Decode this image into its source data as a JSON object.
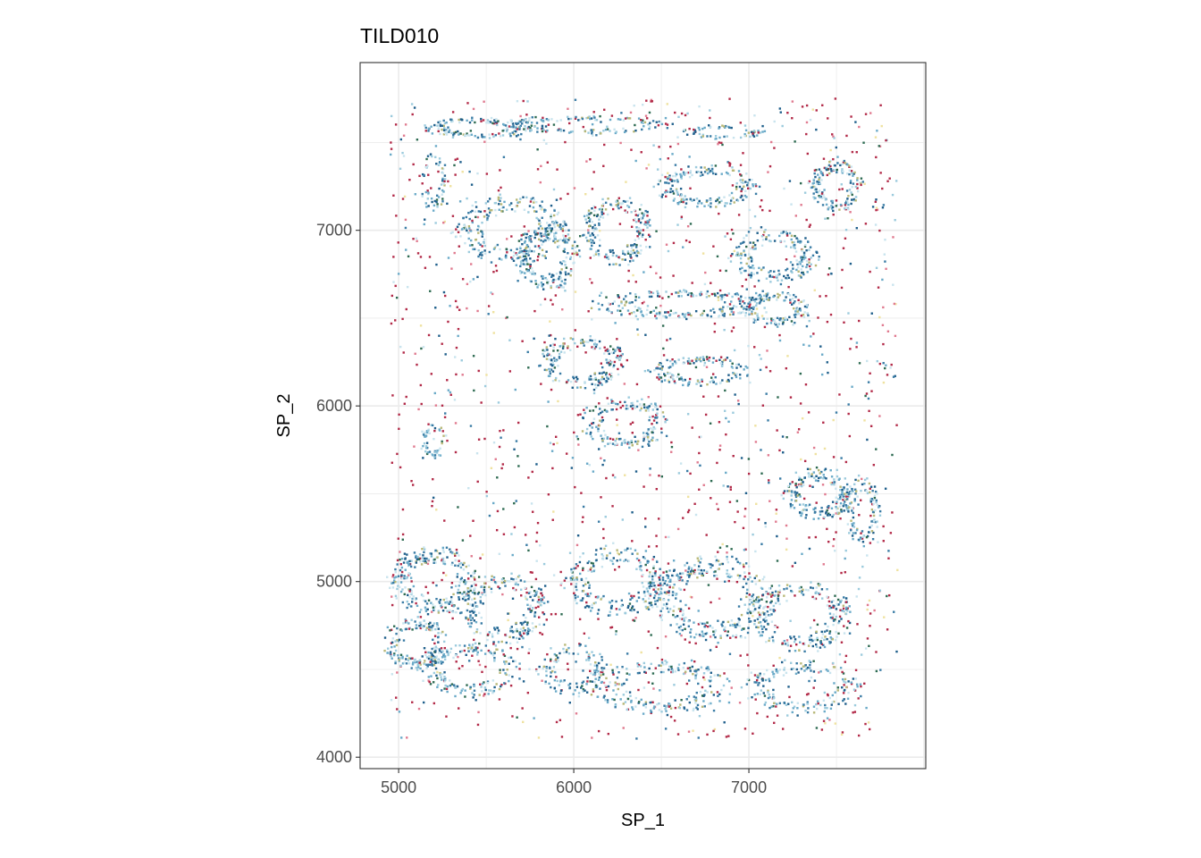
{
  "chart_data": {
    "type": "scatter",
    "title": "TILD010",
    "xlabel": "SP_1",
    "ylabel": "SP_2",
    "xlim": [
      4780,
      8010
    ],
    "ylim": [
      3935,
      7955
    ],
    "x_ticks": [
      5000,
      6000,
      7000
    ],
    "y_ticks": [
      4000,
      5000,
      6000,
      7000
    ],
    "x_tick_labels": [
      "5000",
      "6000",
      "7000"
    ],
    "y_tick_labels": [
      "4000",
      "5000",
      "6000",
      "7000"
    ],
    "grid": true,
    "legend": "none",
    "theme": "bw",
    "point_palette": [
      "#1f5f8b",
      "#3a7ca5",
      "#6aaac8",
      "#9ccbdd",
      "#c9e4ee",
      "#b22a48",
      "#e07a8f",
      "#b8b878",
      "#efe2a0",
      "#2e6b52"
    ],
    "point_clusters": [
      {
        "x": 5450,
        "y": 7580,
        "rx": 300,
        "ry": 60,
        "n": 120
      },
      {
        "x": 6050,
        "y": 7600,
        "rx": 500,
        "ry": 50,
        "n": 140
      },
      {
        "x": 6850,
        "y": 7560,
        "rx": 250,
        "ry": 40,
        "n": 60
      },
      {
        "x": 5200,
        "y": 7300,
        "rx": 80,
        "ry": 200,
        "n": 60
      },
      {
        "x": 5650,
        "y": 7000,
        "rx": 320,
        "ry": 200,
        "n": 240
      },
      {
        "x": 5850,
        "y": 6850,
        "rx": 180,
        "ry": 200,
        "n": 200
      },
      {
        "x": 6250,
        "y": 7000,
        "rx": 200,
        "ry": 200,
        "n": 200
      },
      {
        "x": 6600,
        "y": 6580,
        "rx": 500,
        "ry": 80,
        "n": 200
      },
      {
        "x": 6750,
        "y": 7250,
        "rx": 300,
        "ry": 120,
        "n": 180
      },
      {
        "x": 7150,
        "y": 6850,
        "rx": 250,
        "ry": 150,
        "n": 180
      },
      {
        "x": 7150,
        "y": 6550,
        "rx": 200,
        "ry": 100,
        "n": 140
      },
      {
        "x": 7500,
        "y": 7250,
        "rx": 150,
        "ry": 150,
        "n": 150
      },
      {
        "x": 6050,
        "y": 6250,
        "rx": 250,
        "ry": 150,
        "n": 180
      },
      {
        "x": 6300,
        "y": 5900,
        "rx": 250,
        "ry": 150,
        "n": 160
      },
      {
        "x": 6700,
        "y": 6200,
        "rx": 300,
        "ry": 80,
        "n": 140
      },
      {
        "x": 5200,
        "y": 5800,
        "rx": 80,
        "ry": 100,
        "n": 50
      },
      {
        "x": 7400,
        "y": 5500,
        "rx": 200,
        "ry": 150,
        "n": 180
      },
      {
        "x": 7650,
        "y": 5400,
        "rx": 100,
        "ry": 200,
        "n": 100
      },
      {
        "x": 5200,
        "y": 5000,
        "rx": 250,
        "ry": 200,
        "n": 240
      },
      {
        "x": 5600,
        "y": 4850,
        "rx": 250,
        "ry": 200,
        "n": 220
      },
      {
        "x": 5100,
        "y": 4650,
        "rx": 180,
        "ry": 150,
        "n": 160
      },
      {
        "x": 5400,
        "y": 4500,
        "rx": 300,
        "ry": 150,
        "n": 180
      },
      {
        "x": 6250,
        "y": 5000,
        "rx": 300,
        "ry": 200,
        "n": 220
      },
      {
        "x": 6800,
        "y": 4900,
        "rx": 350,
        "ry": 250,
        "n": 300
      },
      {
        "x": 7300,
        "y": 4800,
        "rx": 300,
        "ry": 200,
        "n": 220
      },
      {
        "x": 6500,
        "y": 4400,
        "rx": 400,
        "ry": 150,
        "n": 200
      },
      {
        "x": 7300,
        "y": 4400,
        "rx": 350,
        "ry": 150,
        "n": 160
      },
      {
        "x": 6000,
        "y": 4500,
        "rx": 200,
        "ry": 150,
        "n": 120
      }
    ],
    "scatter_background": {
      "x_range": [
        4950,
        7850
      ],
      "y_range": [
        4100,
        7750
      ],
      "n": 1500
    }
  }
}
